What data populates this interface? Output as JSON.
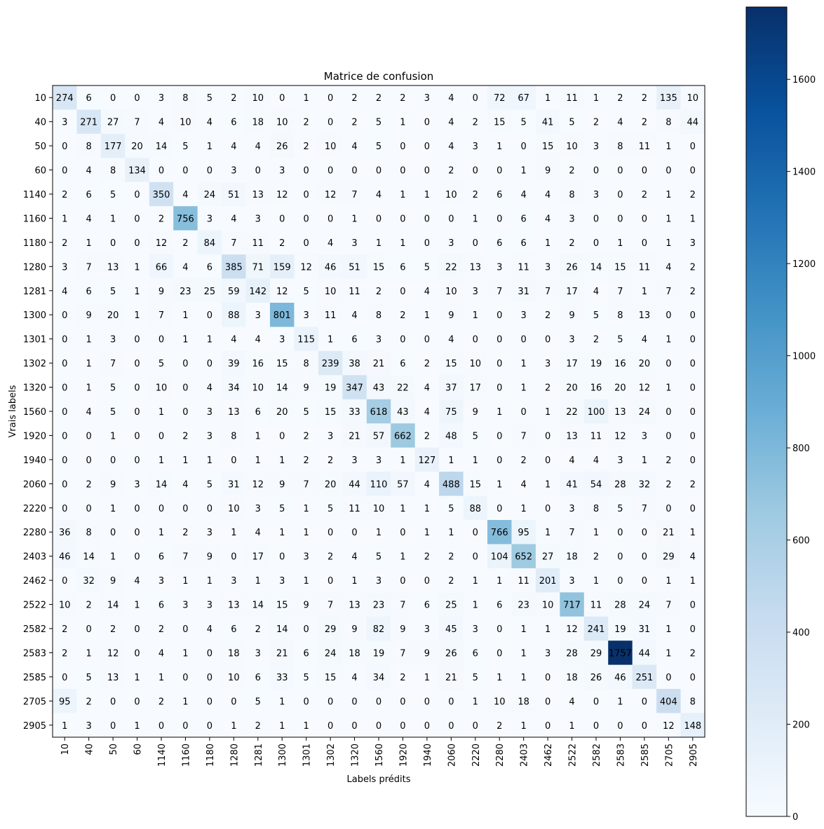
{
  "chart_data": {
    "type": "heatmap",
    "title": "Matrice de confusion",
    "xlabel": "Labels prédits",
    "ylabel": "Vrais labels",
    "labels": [
      "10",
      "40",
      "50",
      "60",
      "1140",
      "1160",
      "1180",
      "1280",
      "1281",
      "1300",
      "1301",
      "1302",
      "1320",
      "1560",
      "1920",
      "1940",
      "2060",
      "2220",
      "2280",
      "2403",
      "2462",
      "2522",
      "2582",
      "2583",
      "2585",
      "2705",
      "2905"
    ],
    "matrix": [
      [
        274,
        6,
        0,
        0,
        3,
        8,
        5,
        2,
        10,
        0,
        1,
        0,
        2,
        2,
        2,
        3,
        4,
        0,
        72,
        67,
        1,
        11,
        1,
        2,
        2,
        135,
        10
      ],
      [
        3,
        271,
        27,
        7,
        4,
        10,
        4,
        6,
        18,
        10,
        2,
        0,
        2,
        5,
        1,
        0,
        4,
        2,
        15,
        5,
        41,
        5,
        2,
        4,
        2,
        8,
        44
      ],
      [
        0,
        8,
        177,
        20,
        14,
        5,
        1,
        4,
        4,
        26,
        2,
        10,
        4,
        5,
        0,
        0,
        4,
        3,
        1,
        0,
        15,
        10,
        3,
        8,
        11,
        1,
        0
      ],
      [
        0,
        4,
        8,
        134,
        0,
        0,
        0,
        3,
        0,
        3,
        0,
        0,
        0,
        0,
        0,
        0,
        2,
        0,
        0,
        1,
        9,
        2,
        0,
        0,
        0,
        0,
        0
      ],
      [
        2,
        6,
        5,
        0,
        350,
        4,
        24,
        51,
        13,
        12,
        0,
        12,
        7,
        4,
        1,
        1,
        10,
        2,
        6,
        4,
        4,
        8,
        3,
        0,
        2,
        1,
        2
      ],
      [
        1,
        4,
        1,
        0,
        2,
        756,
        3,
        4,
        3,
        0,
        0,
        0,
        1,
        0,
        0,
        0,
        0,
        1,
        0,
        6,
        4,
        3,
        0,
        0,
        0,
        1,
        1
      ],
      [
        2,
        1,
        0,
        0,
        12,
        2,
        84,
        7,
        11,
        2,
        0,
        4,
        3,
        1,
        1,
        0,
        3,
        0,
        6,
        6,
        1,
        2,
        0,
        1,
        0,
        1,
        3
      ],
      [
        3,
        7,
        13,
        1,
        66,
        4,
        6,
        385,
        71,
        159,
        12,
        46,
        51,
        15,
        6,
        5,
        22,
        13,
        3,
        11,
        3,
        26,
        14,
        15,
        11,
        4,
        2
      ],
      [
        4,
        6,
        5,
        1,
        9,
        23,
        25,
        59,
        142,
        12,
        5,
        10,
        11,
        2,
        0,
        4,
        10,
        3,
        7,
        31,
        7,
        17,
        4,
        7,
        1,
        7,
        2
      ],
      [
        0,
        9,
        20,
        1,
        7,
        1,
        0,
        88,
        3,
        801,
        3,
        11,
        4,
        8,
        2,
        1,
        9,
        1,
        0,
        3,
        2,
        9,
        5,
        8,
        13,
        0,
        0
      ],
      [
        0,
        1,
        3,
        0,
        0,
        1,
        1,
        4,
        4,
        3,
        115,
        1,
        6,
        3,
        0,
        0,
        4,
        0,
        0,
        0,
        0,
        3,
        2,
        5,
        4,
        1,
        0
      ],
      [
        0,
        1,
        7,
        0,
        5,
        0,
        0,
        39,
        16,
        15,
        8,
        239,
        38,
        21,
        6,
        2,
        15,
        10,
        0,
        1,
        3,
        17,
        19,
        16,
        20,
        0,
        0
      ],
      [
        0,
        1,
        5,
        0,
        10,
        0,
        4,
        34,
        10,
        14,
        9,
        19,
        347,
        43,
        22,
        4,
        37,
        17,
        0,
        1,
        2,
        20,
        16,
        20,
        12,
        1,
        0
      ],
      [
        0,
        4,
        5,
        0,
        1,
        0,
        3,
        13,
        6,
        20,
        5,
        15,
        33,
        618,
        43,
        4,
        75,
        9,
        1,
        0,
        1,
        22,
        100,
        13,
        24,
        0,
        0
      ],
      [
        0,
        0,
        1,
        0,
        0,
        2,
        3,
        8,
        1,
        0,
        2,
        3,
        21,
        57,
        662,
        2,
        48,
        5,
        0,
        7,
        0,
        13,
        11,
        12,
        3,
        0,
        0
      ],
      [
        0,
        0,
        0,
        0,
        1,
        1,
        1,
        0,
        1,
        1,
        2,
        2,
        3,
        3,
        1,
        127,
        1,
        1,
        0,
        2,
        0,
        4,
        4,
        3,
        1,
        2,
        0
      ],
      [
        0,
        2,
        9,
        3,
        14,
        4,
        5,
        31,
        12,
        9,
        7,
        20,
        44,
        110,
        57,
        4,
        488,
        15,
        1,
        4,
        1,
        41,
        54,
        28,
        32,
        2,
        2
      ],
      [
        0,
        0,
        1,
        0,
        0,
        0,
        0,
        10,
        3,
        5,
        1,
        5,
        11,
        10,
        1,
        1,
        5,
        88,
        0,
        1,
        0,
        3,
        8,
        5,
        7,
        0,
        0
      ],
      [
        36,
        8,
        0,
        0,
        1,
        2,
        3,
        1,
        4,
        1,
        1,
        0,
        0,
        1,
        0,
        1,
        1,
        0,
        766,
        95,
        1,
        7,
        1,
        0,
        0,
        21,
        1
      ],
      [
        46,
        14,
        1,
        0,
        6,
        7,
        9,
        0,
        17,
        0,
        3,
        2,
        4,
        5,
        1,
        2,
        2,
        0,
        104,
        652,
        27,
        18,
        2,
        0,
        0,
        29,
        4
      ],
      [
        0,
        32,
        9,
        4,
        3,
        1,
        1,
        3,
        1,
        3,
        1,
        0,
        1,
        3,
        0,
        0,
        2,
        1,
        1,
        11,
        201,
        3,
        1,
        0,
        0,
        1,
        1
      ],
      [
        10,
        2,
        14,
        1,
        6,
        3,
        3,
        13,
        14,
        15,
        9,
        7,
        13,
        23,
        7,
        6,
        25,
        1,
        6,
        23,
        10,
        717,
        11,
        28,
        24,
        7,
        0
      ],
      [
        2,
        0,
        2,
        0,
        2,
        0,
        4,
        6,
        2,
        14,
        0,
        29,
        9,
        82,
        9,
        3,
        45,
        3,
        0,
        1,
        1,
        12,
        241,
        19,
        31,
        1,
        0
      ],
      [
        2,
        1,
        12,
        0,
        4,
        1,
        0,
        18,
        3,
        21,
        6,
        24,
        18,
        19,
        7,
        9,
        26,
        6,
        0,
        1,
        3,
        28,
        29,
        1757,
        44,
        1,
        2
      ],
      [
        0,
        5,
        13,
        1,
        1,
        0,
        0,
        10,
        6,
        33,
        5,
        15,
        4,
        34,
        2,
        1,
        21,
        5,
        1,
        1,
        0,
        18,
        26,
        46,
        251,
        0,
        0
      ],
      [
        95,
        2,
        0,
        0,
        2,
        1,
        0,
        0,
        5,
        1,
        0,
        0,
        0,
        0,
        0,
        0,
        0,
        1,
        10,
        18,
        0,
        4,
        0,
        1,
        0,
        404,
        8
      ],
      [
        1,
        3,
        0,
        1,
        0,
        0,
        0,
        1,
        2,
        1,
        1,
        0,
        0,
        0,
        0,
        0,
        0,
        0,
        2,
        1,
        0,
        1,
        0,
        0,
        0,
        12,
        148
      ]
    ],
    "colormap": "Blues",
    "vmin": 0,
    "vmax": 1757,
    "colorbar_ticks": [
      0,
      200,
      400,
      600,
      800,
      1000,
      1200,
      1400,
      1600
    ]
  }
}
